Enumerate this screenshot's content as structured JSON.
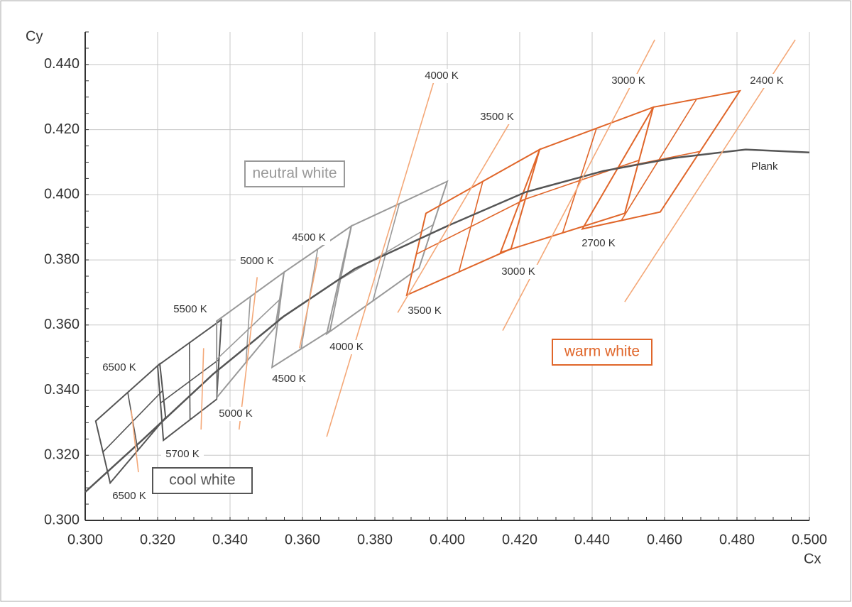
{
  "chart_data": {
    "type": "line",
    "x_label": "Cx",
    "y_label": "Cy",
    "xlim": [
      0.3,
      0.5
    ],
    "ylim": [
      0.3,
      0.45
    ],
    "xticks": [
      {
        "value": 0.3,
        "label": "0.300"
      },
      {
        "value": 0.32,
        "label": "0.320"
      },
      {
        "value": 0.34,
        "label": "0.340"
      },
      {
        "value": 0.36,
        "label": "0.360"
      },
      {
        "value": 0.38,
        "label": "0.380"
      },
      {
        "value": 0.4,
        "label": "0.400"
      },
      {
        "value": 0.42,
        "label": "0.420"
      },
      {
        "value": 0.44,
        "label": "0.440"
      },
      {
        "value": 0.46,
        "label": "0.460"
      },
      {
        "value": 0.48,
        "label": "0.480"
      },
      {
        "value": 0.5,
        "label": "0.500"
      }
    ],
    "yticks": [
      {
        "value": 0.3,
        "label": "0.300"
      },
      {
        "value": 0.32,
        "label": "0.320"
      },
      {
        "value": 0.34,
        "label": "0.340"
      },
      {
        "value": 0.36,
        "label": "0.360"
      },
      {
        "value": 0.38,
        "label": "0.380"
      },
      {
        "value": 0.4,
        "label": "0.400"
      },
      {
        "value": 0.42,
        "label": "0.420"
      },
      {
        "value": 0.44,
        "label": "0.440"
      }
    ],
    "grid": true,
    "series": [
      {
        "name": "Plank",
        "color": "#555555",
        "x": [
          0.3,
          0.3157,
          0.3353,
          0.3549,
          0.3745,
          0.4,
          0.4216,
          0.4431,
          0.4627,
          0.4824,
          0.5
        ],
        "y": [
          0.3087,
          0.3246,
          0.3449,
          0.3627,
          0.3773,
          0.3904,
          0.4008,
          0.4073,
          0.4113,
          0.4139,
          0.413
        ]
      },
      {
        "color": "#f4a878",
        "x": [
          0.3127,
          0.3147,
          null,
          0.3327,
          0.332,
          null,
          0.3475,
          0.3425,
          null,
          0.3643,
          0.3592,
          null,
          0.3971,
          0.3667,
          null,
          0.4186,
          0.3863,
          null,
          0.4573,
          0.4153,
          null,
          0.4961,
          0.449
        ],
        "y": [
          0.334,
          0.3148,
          null,
          0.3529,
          0.3279,
          null,
          0.3747,
          0.3279,
          null,
          0.3808,
          0.3529,
          null,
          0.4378,
          0.3257,
          null,
          0.4247,
          0.3638,
          null,
          0.4476,
          0.3583,
          null,
          0.4476,
          0.3671
        ]
      }
    ],
    "quads": [
      {
        "color": "#555555",
        "x": [
          0.3029,
          0.3206,
          0.3222,
          0.3069
        ],
        "y": [
          0.3305,
          0.3481,
          0.3316,
          0.3115
        ]
      },
      {
        "color": "#555555",
        "x": [
          0.32,
          0.3376,
          0.3363,
          0.3216
        ],
        "y": [
          0.3475,
          0.3616,
          0.3372,
          0.3246
        ]
      },
      {
        "color": "#999999",
        "x": [
          0.3363,
          0.3549,
          0.3525,
          0.3363
        ],
        "y": [
          0.3612,
          0.3762,
          0.3594,
          0.3377
        ]
      },
      {
        "color": "#999999",
        "x": [
          0.3549,
          0.3735,
          0.3676,
          0.3516
        ],
        "y": [
          0.3762,
          0.3904,
          0.3583,
          0.347
        ]
      },
      {
        "color": "#999999",
        "x": [
          0.3735,
          0.4,
          0.3922,
          0.3667
        ],
        "y": [
          0.3904,
          0.4041,
          0.3775,
          0.3573
        ]
      },
      {
        "color": "#e0662a",
        "x": [
          0.3941,
          0.4255,
          0.4176,
          0.3888
        ],
        "y": [
          0.3943,
          0.4139,
          0.3834,
          0.3692
        ]
      },
      {
        "color": "#e0662a",
        "x": [
          0.4255,
          0.4569,
          0.449,
          0.4147
        ],
        "y": [
          0.4139,
          0.4269,
          0.3943,
          0.3823
        ]
      },
      {
        "color": "#e0662a",
        "x": [
          0.4569,
          0.4808,
          0.4588,
          0.4373
        ],
        "y": [
          0.4269,
          0.4319,
          0.3947,
          0.3895
        ]
      }
    ],
    "annotations": [
      "6500 K",
      "5500 K",
      "5000 K",
      "4500 K",
      "4000 K",
      "3500 K",
      "3000 K",
      "2400 K",
      "2700 K",
      "3000 K",
      "3500 K",
      "4000 K",
      "4500 K",
      "5000 K",
      "5700 K",
      "6500 K"
    ],
    "box_labels": [
      {
        "text": "neutral white",
        "color": "#999999"
      },
      {
        "text": "cool white",
        "color": "#555555"
      },
      {
        "text": "warm white",
        "color": "#e0662a"
      }
    ]
  }
}
